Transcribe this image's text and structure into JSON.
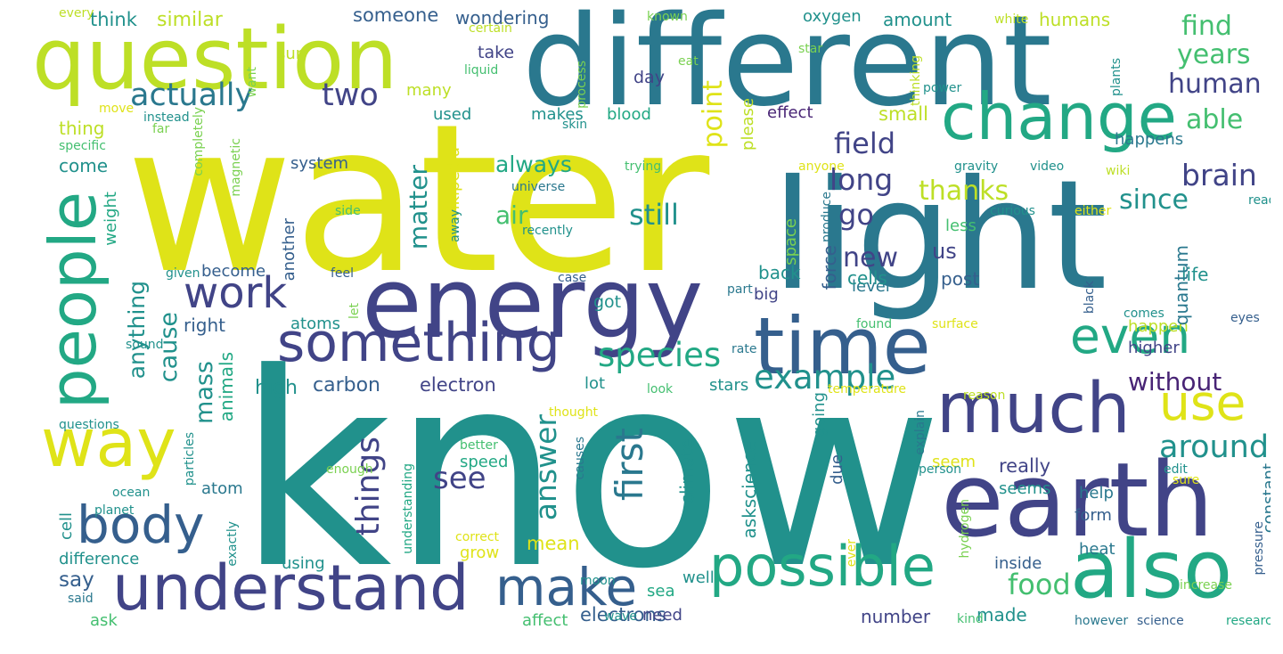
{
  "palette": {
    "dark_purple": "#482475",
    "indigo": "#414487",
    "blue": "#355f8d",
    "steel": "#2a788e",
    "teal": "#21918c",
    "sea_green": "#22a884",
    "green": "#44bf70",
    "lime": "#7ad151",
    "yellow_green": "#bddf26",
    "yellow": "#dfe318"
  },
  "words": [
    {
      "text": "water"
    },
    {
      "text": "know"
    },
    {
      "text": "light"
    },
    {
      "text": "different"
    },
    {
      "text": "energy"
    },
    {
      "text": "question"
    },
    {
      "text": "earth"
    },
    {
      "text": "people"
    },
    {
      "text": "time"
    },
    {
      "text": "also"
    },
    {
      "text": "much"
    },
    {
      "text": "change"
    },
    {
      "text": "understand"
    },
    {
      "text": "something"
    },
    {
      "text": "way"
    },
    {
      "text": "possible"
    },
    {
      "text": "body"
    },
    {
      "text": "work"
    },
    {
      "text": "make"
    },
    {
      "text": "even"
    },
    {
      "text": "use"
    },
    {
      "text": "actually"
    },
    {
      "text": "two"
    },
    {
      "text": "species"
    },
    {
      "text": "example"
    },
    {
      "text": "first"
    },
    {
      "text": "answer"
    },
    {
      "text": "things"
    },
    {
      "text": "brain"
    },
    {
      "text": "field"
    },
    {
      "text": "around"
    },
    {
      "text": "see"
    },
    {
      "text": "food"
    },
    {
      "text": "long"
    },
    {
      "text": "still"
    },
    {
      "text": "point"
    },
    {
      "text": "go"
    },
    {
      "text": "human"
    },
    {
      "text": "since"
    },
    {
      "text": "thanks"
    },
    {
      "text": "new"
    },
    {
      "text": "without"
    },
    {
      "text": "find"
    },
    {
      "text": "years"
    },
    {
      "text": "able"
    },
    {
      "text": "air"
    },
    {
      "text": "matter"
    },
    {
      "text": "mass"
    },
    {
      "text": "cause"
    },
    {
      "text": "anything"
    },
    {
      "text": "always"
    },
    {
      "text": "carbon"
    },
    {
      "text": "electron"
    },
    {
      "text": "high"
    },
    {
      "text": "say"
    },
    {
      "text": "electrons"
    },
    {
      "text": "number"
    },
    {
      "text": "made"
    },
    {
      "text": "mean"
    },
    {
      "text": "really"
    },
    {
      "text": "someone"
    },
    {
      "text": "wondering"
    },
    {
      "text": "similar"
    },
    {
      "text": "think"
    },
    {
      "text": "amount"
    },
    {
      "text": "humans"
    },
    {
      "text": "oxygen"
    },
    {
      "text": "take"
    },
    {
      "text": "day"
    },
    {
      "text": "sun"
    },
    {
      "text": "many"
    },
    {
      "text": "used"
    },
    {
      "text": "makes"
    },
    {
      "text": "blood"
    },
    {
      "text": "effect"
    },
    {
      "text": "small"
    },
    {
      "text": "happens"
    },
    {
      "text": "thing"
    },
    {
      "text": "come"
    },
    {
      "text": "system"
    },
    {
      "text": "please"
    },
    {
      "text": "us"
    },
    {
      "text": "less"
    },
    {
      "text": "level"
    },
    {
      "text": "cells"
    },
    {
      "text": "post"
    },
    {
      "text": "life"
    },
    {
      "text": "back"
    },
    {
      "text": "big"
    },
    {
      "text": "got"
    },
    {
      "text": "become"
    },
    {
      "text": "right"
    },
    {
      "text": "atoms"
    },
    {
      "text": "happen"
    },
    {
      "text": "higher"
    },
    {
      "text": "quantum"
    },
    {
      "text": "force"
    },
    {
      "text": "lot"
    },
    {
      "text": "stars"
    },
    {
      "text": "going"
    },
    {
      "text": "askscience"
    },
    {
      "text": "climate"
    },
    {
      "text": "speed"
    },
    {
      "text": "seem"
    },
    {
      "text": "seems"
    },
    {
      "text": "help"
    },
    {
      "text": "constant"
    },
    {
      "text": "atom"
    },
    {
      "text": "cell"
    },
    {
      "text": "difference"
    },
    {
      "text": "grow"
    },
    {
      "text": "using"
    },
    {
      "text": "inside"
    },
    {
      "text": "heat"
    },
    {
      "text": "form"
    },
    {
      "text": "well"
    },
    {
      "text": "sea"
    },
    {
      "text": "need"
    },
    {
      "text": "affect"
    },
    {
      "text": "ask"
    },
    {
      "text": "animals"
    },
    {
      "text": "wikipedia"
    },
    {
      "text": "another"
    },
    {
      "text": "weight"
    },
    {
      "text": "space"
    },
    {
      "text": "due"
    },
    {
      "text": "every"
    },
    {
      "text": "certain"
    },
    {
      "text": "known"
    },
    {
      "text": "star"
    },
    {
      "text": "white"
    },
    {
      "text": "good"
    },
    {
      "text": "liquid"
    },
    {
      "text": "eat"
    },
    {
      "text": "process"
    },
    {
      "text": "thinking"
    },
    {
      "text": "power"
    },
    {
      "text": "plants"
    },
    {
      "text": "move"
    },
    {
      "text": "want"
    },
    {
      "text": "instead"
    },
    {
      "text": "completely"
    },
    {
      "text": "far"
    },
    {
      "text": "skin"
    },
    {
      "text": "specific"
    },
    {
      "text": "magnetic"
    },
    {
      "text": "trying"
    },
    {
      "text": "anyone"
    },
    {
      "text": "gravity"
    },
    {
      "text": "video"
    },
    {
      "text": "wiki"
    },
    {
      "text": "universe"
    },
    {
      "text": "side"
    },
    {
      "text": "curious"
    },
    {
      "text": "either"
    },
    {
      "text": "read"
    },
    {
      "text": "recently"
    },
    {
      "text": "produce"
    },
    {
      "text": "given"
    },
    {
      "text": "feel"
    },
    {
      "text": "away"
    },
    {
      "text": "case"
    },
    {
      "text": "part"
    },
    {
      "text": "let"
    },
    {
      "text": "black"
    },
    {
      "text": "eyes"
    },
    {
      "text": "found"
    },
    {
      "text": "surface"
    },
    {
      "text": "comes"
    },
    {
      "text": "sound"
    },
    {
      "text": "rate"
    },
    {
      "text": "look"
    },
    {
      "text": "temperature"
    },
    {
      "text": "reason"
    },
    {
      "text": "questions"
    },
    {
      "text": "particles"
    },
    {
      "text": "thought"
    },
    {
      "text": "explain"
    },
    {
      "text": "better"
    },
    {
      "text": "causes"
    },
    {
      "text": "enough"
    },
    {
      "text": "person"
    },
    {
      "text": "edit"
    },
    {
      "text": "sure"
    },
    {
      "text": "ocean"
    },
    {
      "text": "planet"
    },
    {
      "text": "understanding"
    },
    {
      "text": "correct"
    },
    {
      "text": "hydrogen"
    },
    {
      "text": "exactly"
    },
    {
      "text": "moon"
    },
    {
      "text": "ever"
    },
    {
      "text": "increase"
    },
    {
      "text": "pressure"
    },
    {
      "text": "said"
    },
    {
      "text": "wave"
    },
    {
      "text": "kind"
    },
    {
      "text": "however"
    },
    {
      "text": "science"
    },
    {
      "text": "research"
    }
  ]
}
